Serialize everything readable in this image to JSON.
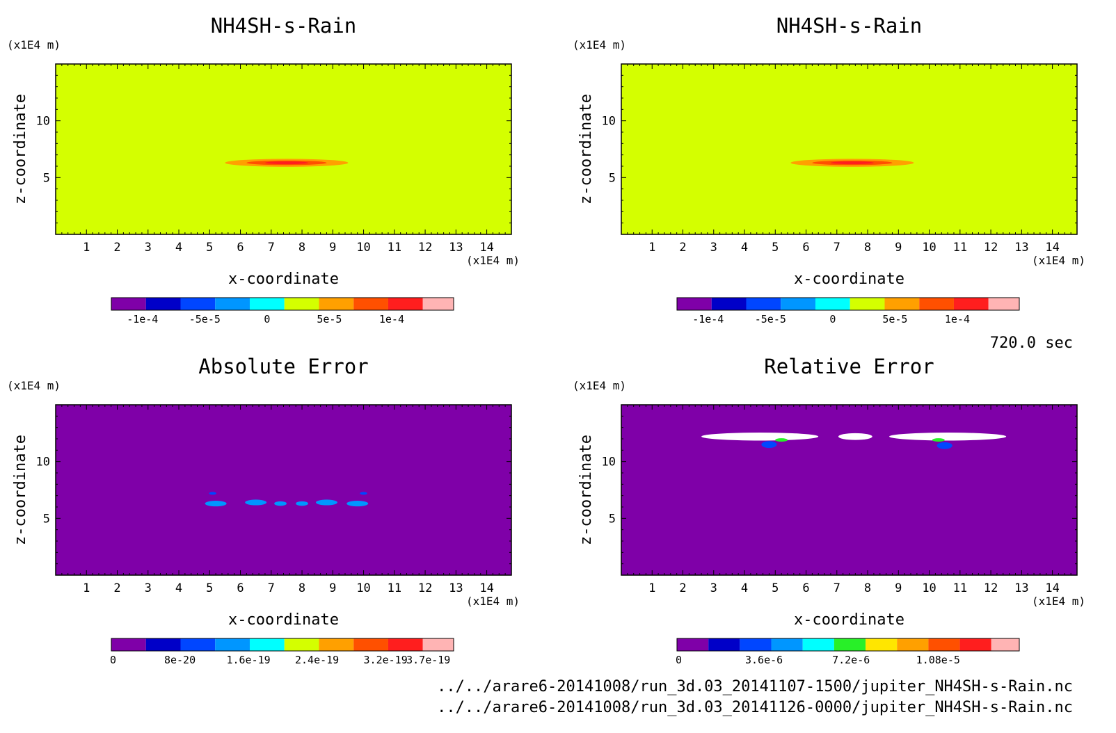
{
  "time_label": "720.0 sec",
  "files": [
    "../../arare6-20141008/run_3d.03_20141107-1500/jupiter_NH4SH-s-Rain.nc",
    "../../arare6-20141008/run_3d.03_20141126-0000/jupiter_NH4SH-s-Rain.nc"
  ],
  "chart_data": [
    {
      "type": "heatmap",
      "title": "NH4SH-s-Rain",
      "xlabel": "x-coordinate",
      "ylabel": "z-coordinate",
      "x_unit": "(x1E4 m)",
      "y_unit": "(x1E4 m)",
      "xlim": [
        0,
        14.8
      ],
      "ylim": [
        0,
        15
      ],
      "x_ticks": [
        "1",
        "2",
        "3",
        "4",
        "5",
        "6",
        "7",
        "8",
        "9",
        "10",
        "11",
        "12",
        "13",
        "14"
      ],
      "y_ticks": [
        "5",
        "10"
      ],
      "background_color": "#d4ff00",
      "colorbar": {
        "colors": [
          "#7f00a8",
          "#0000c8",
          "#0046ff",
          "#0096ff",
          "#00ffff",
          "#d4ff00",
          "#ffa000",
          "#ff5000",
          "#ff1e1e",
          "#ffb4b4"
        ],
        "tick_labels": [
          "-1e-4",
          "-5e-5",
          "0",
          "5e-5",
          "1e-4"
        ],
        "tick_values": [
          -0.0001,
          -5e-05,
          0,
          5e-05,
          0.0001
        ]
      },
      "features": [
        {
          "x_center": 7.5,
          "z": 6.3,
          "half_width": 2.0,
          "half_height": 0.35,
          "color": "#ffa000"
        },
        {
          "x_center": 7.5,
          "z": 6.3,
          "half_width": 1.3,
          "half_height": 0.2,
          "color": "#ff5000"
        },
        {
          "x_center": 7.5,
          "z": 6.3,
          "half_width": 0.7,
          "half_height": 0.1,
          "color": "#ff1e1e"
        }
      ]
    },
    {
      "type": "heatmap",
      "title": "NH4SH-s-Rain",
      "xlabel": "x-coordinate",
      "ylabel": "z-coordinate",
      "x_unit": "(x1E4 m)",
      "y_unit": "(x1E4 m)",
      "xlim": [
        0,
        14.8
      ],
      "ylim": [
        0,
        15
      ],
      "x_ticks": [
        "1",
        "2",
        "3",
        "4",
        "5",
        "6",
        "7",
        "8",
        "9",
        "10",
        "11",
        "12",
        "13",
        "14"
      ],
      "y_ticks": [
        "5",
        "10"
      ],
      "background_color": "#d4ff00",
      "colorbar": {
        "colors": [
          "#7f00a8",
          "#0000c8",
          "#0046ff",
          "#0096ff",
          "#00ffff",
          "#d4ff00",
          "#ffa000",
          "#ff5000",
          "#ff1e1e",
          "#ffb4b4"
        ],
        "tick_labels": [
          "-1e-4",
          "-5e-5",
          "0",
          "5e-5",
          "1e-4"
        ],
        "tick_values": [
          -0.0001,
          -5e-05,
          0,
          5e-05,
          0.0001
        ]
      },
      "features": [
        {
          "x_center": 7.5,
          "z": 6.3,
          "half_width": 2.0,
          "half_height": 0.35,
          "color": "#ffa000"
        },
        {
          "x_center": 7.5,
          "z": 6.3,
          "half_width": 1.3,
          "half_height": 0.2,
          "color": "#ff5000"
        },
        {
          "x_center": 7.5,
          "z": 6.3,
          "half_width": 0.7,
          "half_height": 0.1,
          "color": "#ff1e1e"
        }
      ]
    },
    {
      "type": "heatmap",
      "title": "Absolute Error",
      "xlabel": "x-coordinate",
      "ylabel": "z-coordinate",
      "x_unit": "(x1E4 m)",
      "y_unit": "(x1E4 m)",
      "xlim": [
        0,
        14.8
      ],
      "ylim": [
        0,
        15
      ],
      "x_ticks": [
        "1",
        "2",
        "3",
        "4",
        "5",
        "6",
        "7",
        "8",
        "9",
        "10",
        "11",
        "12",
        "13",
        "14"
      ],
      "y_ticks": [
        "5",
        "10"
      ],
      "background_color": "#7f00a8",
      "colorbar": {
        "colors": [
          "#7f00a8",
          "#0000c8",
          "#0046ff",
          "#0096ff",
          "#00ffff",
          "#d4ff00",
          "#ffa000",
          "#ff5000",
          "#ff1e1e",
          "#ffb4b4"
        ],
        "tick_labels": [
          "0",
          "8e-20",
          "1.6e-19",
          "2.4e-19",
          "3.2e-19",
          "3.7e-19"
        ],
        "tick_values": [
          0,
          8e-20,
          1.6e-19,
          2.4e-19,
          3.2e-19,
          3.7e-19
        ]
      },
      "features": [
        {
          "x_center": 5.2,
          "z": 6.3,
          "half_width": 0.35,
          "half_height": 0.25,
          "color": "#0096ff"
        },
        {
          "x_center": 6.5,
          "z": 6.4,
          "half_width": 0.35,
          "half_height": 0.25,
          "color": "#0096ff"
        },
        {
          "x_center": 7.3,
          "z": 6.3,
          "half_width": 0.2,
          "half_height": 0.2,
          "color": "#0096ff"
        },
        {
          "x_center": 8.0,
          "z": 6.3,
          "half_width": 0.2,
          "half_height": 0.2,
          "color": "#0096ff"
        },
        {
          "x_center": 8.8,
          "z": 6.4,
          "half_width": 0.35,
          "half_height": 0.25,
          "color": "#0096ff"
        },
        {
          "x_center": 9.8,
          "z": 6.3,
          "half_width": 0.35,
          "half_height": 0.25,
          "color": "#0096ff"
        },
        {
          "x_center": 5.1,
          "z": 7.2,
          "half_width": 0.12,
          "half_height": 0.1,
          "color": "#0046ff"
        },
        {
          "x_center": 10.0,
          "z": 7.2,
          "half_width": 0.12,
          "half_height": 0.1,
          "color": "#0046ff"
        }
      ]
    },
    {
      "type": "heatmap",
      "title": "Relative Error",
      "xlabel": "x-coordinate",
      "ylabel": "z-coordinate",
      "x_unit": "(x1E4 m)",
      "y_unit": "(x1E4 m)",
      "xlim": [
        0,
        14.8
      ],
      "ylim": [
        0,
        15
      ],
      "x_ticks": [
        "1",
        "2",
        "3",
        "4",
        "5",
        "6",
        "7",
        "8",
        "9",
        "10",
        "11",
        "12",
        "13",
        "14"
      ],
      "y_ticks": [
        "5",
        "10"
      ],
      "background_color": "#7f00a8",
      "colorbar": {
        "colors": [
          "#7f00a8",
          "#0000c8",
          "#0046ff",
          "#0096ff",
          "#00ffff",
          "#28f028",
          "#ffe600",
          "#ffa000",
          "#ff5000",
          "#ff1e1e",
          "#ffb4b4"
        ],
        "tick_labels": [
          "0",
          "3.6e-6",
          "7.2e-6",
          "1.08e-5"
        ],
        "tick_values": [
          0,
          3.6e-06,
          7.2e-06,
          1.08e-05
        ]
      },
      "features": [
        {
          "x_center": 4.5,
          "z": 12.2,
          "half_width": 1.9,
          "half_height": 0.35,
          "color": "#ffffff"
        },
        {
          "x_center": 7.6,
          "z": 12.2,
          "half_width": 0.55,
          "half_height": 0.3,
          "color": "#ffffff"
        },
        {
          "x_center": 10.6,
          "z": 12.2,
          "half_width": 1.9,
          "half_height": 0.35,
          "color": "#ffffff"
        },
        {
          "x_center": 4.8,
          "z": 11.5,
          "half_width": 0.25,
          "half_height": 0.3,
          "color": "#0046ff"
        },
        {
          "x_center": 10.5,
          "z": 11.4,
          "half_width": 0.25,
          "half_height": 0.3,
          "color": "#0046ff"
        },
        {
          "x_center": 5.2,
          "z": 11.9,
          "half_width": 0.2,
          "half_height": 0.15,
          "color": "#28f028"
        },
        {
          "x_center": 10.3,
          "z": 11.9,
          "half_width": 0.2,
          "half_height": 0.15,
          "color": "#28f028"
        }
      ]
    }
  ]
}
